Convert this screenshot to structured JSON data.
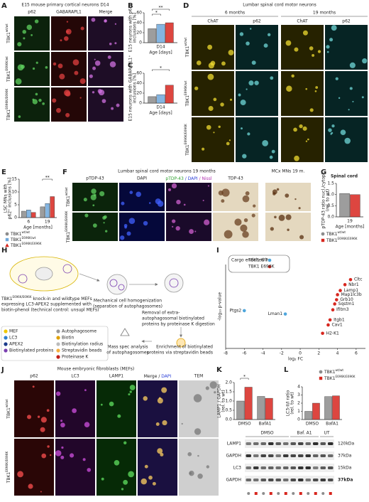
{
  "panels": {
    "A": {
      "letter": "A",
      "title": "E15 mouse primary cortical neurons  D14",
      "columns": [
        "p62",
        "GABARAPL1",
        "Merge"
      ],
      "rows": [
        {
          "base": "TBK1",
          "sup": "wt/wt"
        },
        {
          "base": "TBK1",
          "sup": "E696K/wt"
        },
        {
          "base": "TBK1",
          "sup": "E696K/E696K"
        }
      ]
    },
    "D": {
      "letter": "D",
      "title": "Lumbar spinal cord motor neurons",
      "groups": [
        "6 months",
        "19 months"
      ],
      "columns": [
        "ChAT",
        "p62",
        "ChAT",
        "p62"
      ],
      "rows": [
        {
          "base": "TBK1",
          "sup": "wt/wt"
        },
        {
          "base": "TBK1",
          "sup": "E696K/wt"
        },
        {
          "base": "TBK1",
          "sup": "E696K/E696K"
        }
      ]
    },
    "F": {
      "letter": "F",
      "title": "Lumbar spinal cord motor neurons 19 months",
      "title2": "MCx MNs 19 m.",
      "columns": [
        "pTDP-43",
        "DAPI",
        [
          "pTDP-43",
          " / DAPI",
          " / Nissl"
        ],
        "TDP-43"
      ],
      "rows": [
        {
          "base": "TBK1",
          "sup": "wt/wt"
        },
        {
          "base": "TBK1",
          "sup": "E696K/E696K"
        }
      ]
    },
    "H": {
      "letter": "H",
      "intro": {
        "gene": {
          "base": "TBK1",
          "sup": "E696K/E696K"
        },
        "lines": [
          " knock-in and wildtype MEFs",
          "expressing LC3-APEX2 supplemented with",
          "biotin-phenol (technical control: unsupl MEFs)"
        ]
      },
      "steps": [
        [
          "Mechanical cell homogenization",
          "(separation of autophagosomes)"
        ],
        [
          "Removal of extra-",
          "autophagosomal biotinylated",
          "proteins by proteinase K digestion"
        ],
        [
          "Enrichment of biotinylated",
          "proteins via streptavidin beads"
        ],
        [
          "Mass spec analysis",
          "of autophagosomes"
        ]
      ],
      "legend": [
        "MEF",
        "LC3",
        "APEX2",
        "Biotinylated proteins",
        "Autophagosome",
        "Biotin",
        "Biotinylation radius",
        "Streptavidin beads",
        "Proteinase K"
      ]
    },
    "J": {
      "letter": "J",
      "title": "Mouse embryonic fibroblasts (MEFs)",
      "columns": [
        "p62",
        "LC3",
        "LAMP1",
        [
          "Merge / ",
          "DAPI"
        ],
        "TEM"
      ],
      "rows": [
        {
          "base": "TBK1",
          "sup": "wt/wt"
        },
        {
          "base": "TBK1",
          "sup": "E696K/E696K"
        }
      ]
    },
    "western": {
      "columns": [
        "DMSO",
        "Baf. A1",
        "UT"
      ],
      "rows": [
        {
          "protein": "LAMP1",
          "size": "120kDa"
        },
        {
          "protein": "GAPDH",
          "size": "37kDa"
        },
        {
          "protein": "LC3",
          "size": "15kDa"
        },
        {
          "protein": "GAPDH",
          "size": "37kDa"
        }
      ]
    }
  },
  "chart_data": [
    {
      "type": "bar",
      "panel": "B",
      "ylabel": [
        "E15 neurons with p62⁺",
        "inclusions [%]"
      ],
      "categories": [
        "D14"
      ],
      "xlabel": "Age [days]",
      "ylim": [
        0,
        60
      ],
      "yticks": [
        0,
        20,
        40,
        60
      ],
      "series": [
        {
          "color": "#8c8c8c",
          "values": [
            28
          ]
        },
        {
          "color": "#6fa8dc",
          "values": [
            37
          ]
        },
        {
          "color": "#d7261e",
          "values": [
            40
          ]
        }
      ],
      "annotations": [
        "*",
        "**"
      ]
    },
    {
      "type": "bar",
      "panel": "C",
      "ylabel": [
        "E15 neurons with GABARAPL1⁺",
        "inclusions [%]"
      ],
      "categories": [
        "D14"
      ],
      "xlabel": "Age [days]",
      "ylim": [
        0,
        60
      ],
      "yticks": [
        0,
        20,
        40,
        60
      ],
      "series": [
        {
          "color": "#8c8c8c",
          "values": [
            13
          ]
        },
        {
          "color": "#6fa8dc",
          "values": [
            17
          ]
        },
        {
          "color": "#d7261e",
          "values": [
            36
          ]
        }
      ],
      "annotations": [
        "*"
      ]
    },
    {
      "type": "bar",
      "panel": "E",
      "ylabel": [
        "LSC MNs with",
        "p62⁺ inclusions [%]"
      ],
      "categories": [
        "6",
        "19"
      ],
      "xlabel": "Age [months]",
      "ylim": [
        0,
        15
      ],
      "yticks": [
        0,
        5,
        10,
        15
      ],
      "series": [
        {
          "name": {
            "base": "TBK1",
            "sup": "wt/wt"
          },
          "color": "#8c8c8c",
          "values": [
            2.5,
            4.2
          ]
        },
        {
          "name": {
            "base": "TBK1",
            "sup": "E696K/wt"
          },
          "color": "#6fa8dc",
          "values": [
            3,
            5.5
          ]
        },
        {
          "name": {
            "base": "TBK1",
            "sup": "E696K/E696K"
          },
          "color": "#d7261e",
          "values": [
            2,
            8.2
          ]
        }
      ],
      "annotations": [
        "**"
      ]
    },
    {
      "type": "bar",
      "panel": "G",
      "title": "Spinal cord",
      "ylabel": [
        "pTDP-43 ratio nucl./cytopl.",
        "(rel. to wt)"
      ],
      "categories": [
        "19"
      ],
      "xlabel": "Age [months]",
      "ylim": [
        0,
        1.5
      ],
      "yticks": [
        {
          "value": 0,
          "label": "0.0"
        },
        {
          "value": 0.5,
          "label": "0.5"
        },
        {
          "value": 1,
          "label": "1.0"
        },
        {
          "value": 1.5,
          "label": "1.5"
        }
      ],
      "series": [
        {
          "name": {
            "base": "TBK1",
            "sup": "wt/wt"
          },
          "color": "#8c8c8c",
          "values": [
            1.05
          ]
        },
        {
          "name": {
            "base": "TBK1",
            "sup": "E696K/E696K"
          },
          "color": "#d7261e",
          "values": [
            1
          ]
        }
      ]
    },
    {
      "type": "scatter",
      "panel": "I",
      "xlabel": "log₂ FC",
      "ylabel": "-log₁₀ p-value",
      "xlim": [
        -8,
        7
      ],
      "xticks": [
        -8,
        -6,
        -4,
        -2,
        0,
        2,
        4,
        6
      ],
      "ylim": [
        0,
        10
      ],
      "legend_title": "Cargo enriched in",
      "series": [
        {
          "name": "TBK1 WT",
          "color": "#4ea6dc",
          "x": [
            -6,
            -1.6
          ],
          "values": [
            4.5,
            4.1
          ],
          "labels": [
            "Ptgs2",
            "Lman1"
          ]
        },
        {
          "name": "TBK1 E696K",
          "color": "#d7261e",
          "x": [
            5.4,
            4.8,
            4.3,
            4.0,
            3.9,
            3.7,
            3.5,
            3.2,
            3.0,
            2.4
          ],
          "values": [
            8.2,
            7.6,
            6.9,
            6.4,
            5.8,
            5.3,
            4.6,
            3.4,
            2.8,
            1.8
          ],
          "labels": [
            "Cltc",
            "Nbr1",
            "Lamp1",
            "Map1lc3b",
            "Grb10",
            "Sqstm1",
            "Ifitm3",
            "Itgb1",
            "Cav1",
            "H2-K1"
          ]
        }
      ]
    },
    {
      "type": "bar",
      "panel": "K",
      "ylabel": [
        "LAMP1 / GAPDH",
        "(rel. to wt)"
      ],
      "categories": [
        "DMSO",
        "BafA1"
      ],
      "ylim": [
        0,
        2
      ],
      "yticks": [
        {
          "value": 0,
          "label": "0.0"
        },
        {
          "value": 0.5,
          "label": "0.5"
        },
        {
          "value": 1,
          "label": "1.0"
        },
        {
          "value": 1.5,
          "label": "1.5"
        },
        {
          "value": 2,
          "label": "2.0"
        }
      ],
      "series": [
        {
          "color": "#8c8c8c",
          "values": [
            1,
            1.25
          ]
        },
        {
          "color": "#d7261e",
          "values": [
            1.75,
            1.15
          ]
        }
      ],
      "annotations": [
        "*"
      ]
    },
    {
      "type": "bar",
      "panel": "L",
      "ylabel": [
        "LC3-II/I ratio",
        "(rel. to wt)"
      ],
      "categories": [
        "DMSO",
        "BafA1"
      ],
      "ylim": [
        0,
        4
      ],
      "yticks": [
        0,
        1,
        2,
        3,
        4
      ],
      "series": [
        {
          "name": {
            "base": "TBK1",
            "sup": "wt/wt"
          },
          "color": "#8c8c8c",
          "values": [
            1,
            2.8
          ]
        },
        {
          "name": {
            "base": "TBK1",
            "sup": "E696K/E696K"
          },
          "color": "#d7261e",
          "values": [
            2,
            2.9
          ]
        }
      ]
    }
  ]
}
